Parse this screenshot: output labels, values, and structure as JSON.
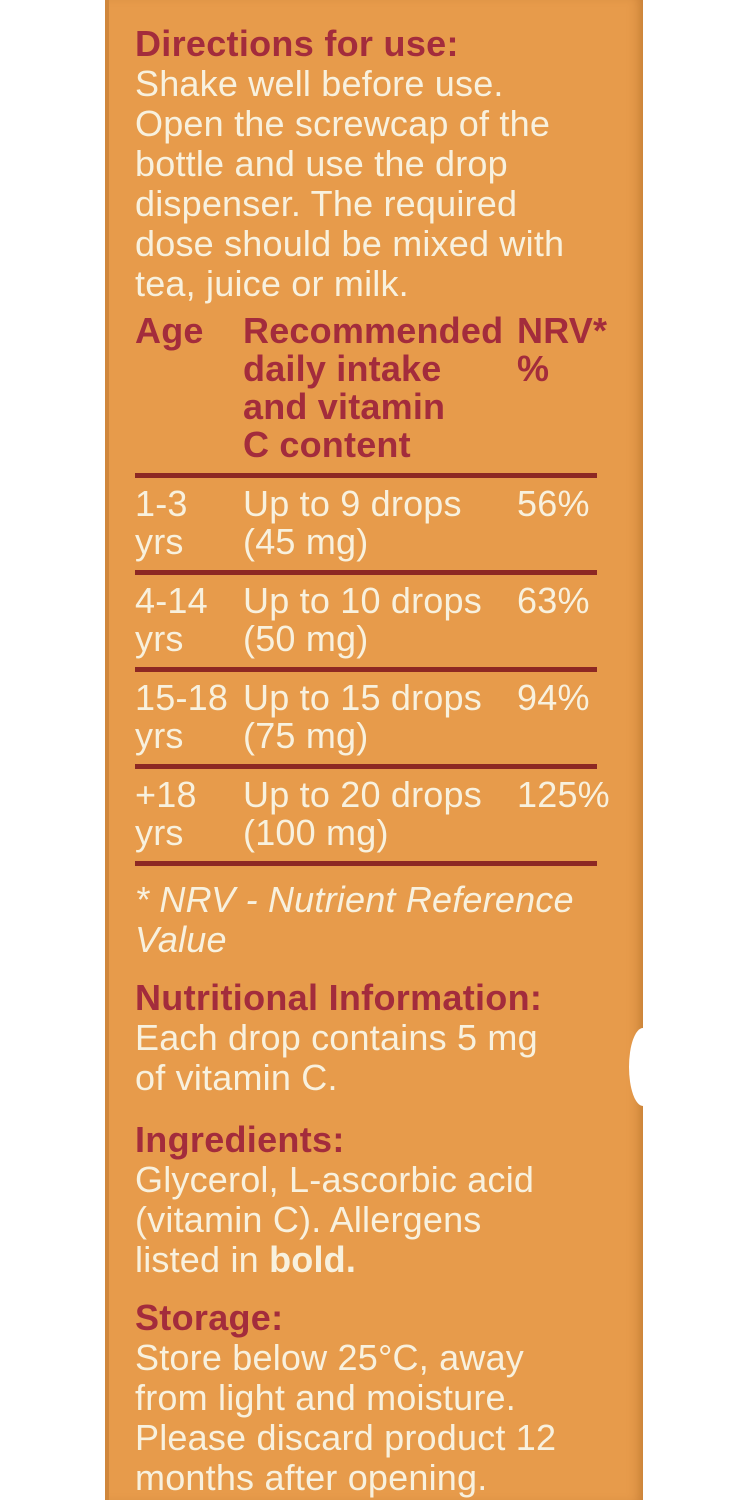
{
  "colors": {
    "panel_orange": "#E79B4B",
    "panel_edge_dark": "#D0873C",
    "heading_red": "#A32C3C",
    "divider_maroon": "#8D2823",
    "body_cream": "#F8F1DE"
  },
  "directions": {
    "heading": "Directions for use:",
    "body": "Shake well before use.\nOpen the screwcap of the\nbottle and use the drop\ndispenser. The required\ndose should be mixed with\ntea, juice or milk."
  },
  "table": {
    "headers": {
      "age": "Age",
      "intake": "Recommended\ndaily intake\nand vitamin\nC content",
      "nrv": "NRV*\n%"
    },
    "rows": [
      {
        "age": "1-3\nyrs",
        "intake": "Up to 9 drops\n(45 mg)",
        "nrv": "56%"
      },
      {
        "age": "4-14\nyrs",
        "intake": "Up to 10 drops\n(50 mg)",
        "nrv": "63%"
      },
      {
        "age": "15-18\nyrs",
        "intake": "Up to 15 drops\n(75 mg)",
        "nrv": "94%"
      },
      {
        "age": "+18\nyrs",
        "intake": "Up to 20 drops\n(100 mg)",
        "nrv": "125%"
      }
    ],
    "footnote": "* NRV - Nutrient Reference\nValue"
  },
  "nutrition": {
    "heading": "Nutritional Information:",
    "body": "Each drop contains 5 mg\nof vitamin C."
  },
  "ingredients": {
    "heading": "Ingredients:",
    "body": "Glycerol, L-ascorbic acid\n(vitamin C). Allergens\nlisted in ",
    "bold_word": "bold."
  },
  "storage": {
    "heading": "Storage:",
    "body": "Store below 25°C, away\nfrom light and moisture.\nPlease discard product 12\nmonths after opening."
  }
}
